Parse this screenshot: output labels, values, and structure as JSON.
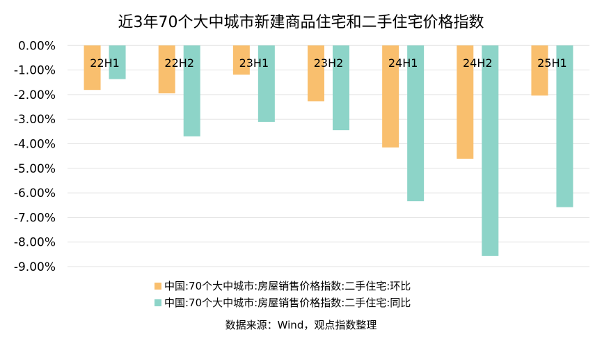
{
  "chart_data": {
    "type": "bar",
    "title": "近3年70个大中城市新建商品住宅和二手住宅价格指数",
    "categories": [
      "22H1",
      "22H2",
      "23H1",
      "23H2",
      "24H1",
      "24H2",
      "25H1"
    ],
    "series": [
      {
        "name": "中国:70个大中城市:房屋销售价格指数:二手住宅:环比",
        "color": "#F9BF6E",
        "values": [
          -1.81,
          -1.95,
          -1.19,
          -2.27,
          -4.15,
          -4.61,
          -2.04
        ]
      },
      {
        "name": "中国:70个大中城市:房屋销售价格指数:二手住宅:同比",
        "color": "#8DD4C8",
        "values": [
          -1.37,
          -3.7,
          -3.11,
          -3.45,
          -6.34,
          -8.57,
          -6.58
        ]
      }
    ],
    "yticks": [
      "0.00%",
      "-1.00%",
      "-2.00%",
      "-3.00%",
      "-4.00%",
      "-5.00%",
      "-6.00%",
      "-7.00%",
      "-8.00%",
      "-9.00%"
    ],
    "ylim": [
      -9,
      0
    ],
    "xlabel": "",
    "ylabel": "",
    "grid": true,
    "legend": "bottom"
  },
  "source": "数据来源：Wind，观点指数整理"
}
